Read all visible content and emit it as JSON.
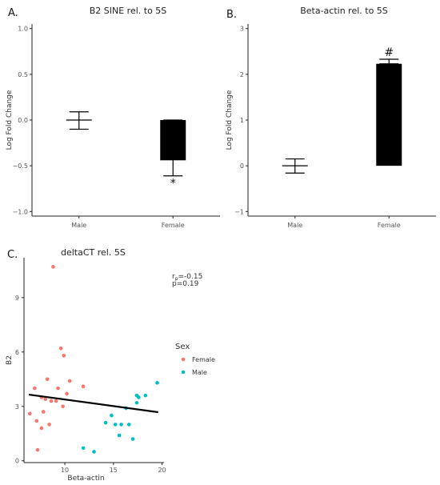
{
  "chart_data": [
    {
      "panel": "A.",
      "type": "bar",
      "title": "B2 SINE rel. to 5S",
      "xlabel": "",
      "ylabel": "Log Fold Change",
      "categories": [
        "Male",
        "Female"
      ],
      "values": [
        0.0,
        -0.44
      ],
      "errors": [
        [
          -0.1,
          0.09
        ],
        [
          -0.61,
          0.0
        ]
      ],
      "annotations": [
        "",
        "*"
      ],
      "ylim": [
        -1.05,
        1.05
      ],
      "yticks": [
        -1.0,
        -0.5,
        0.0,
        0.5,
        1.0
      ],
      "ytick_labels": [
        "−1.0",
        "−0.5",
        "0.0",
        "0.5",
        "1.0"
      ],
      "bar_color": "#000000",
      "grid": false
    },
    {
      "panel": "B.",
      "type": "bar",
      "title": "Beta-actin rel. to 5S",
      "xlabel": "",
      "ylabel": "Log Fold Change",
      "categories": [
        "Male",
        "Female"
      ],
      "values": [
        0.0,
        2.23
      ],
      "errors": [
        [
          -0.16,
          0.15
        ],
        [
          2.23,
          2.33
        ]
      ],
      "annotations": [
        "",
        "#"
      ],
      "ylim": [
        -1.1,
        3.1
      ],
      "yticks": [
        -1,
        0,
        1,
        2,
        3
      ],
      "ytick_labels": [
        "−1",
        "0",
        "1",
        "2",
        "3"
      ],
      "bar_color": "#000000",
      "grid": false
    },
    {
      "panel": "C.",
      "type": "scatter",
      "title": "deltaCT rel. 5S",
      "xlabel": "Beta-actin",
      "ylabel": "B2",
      "xlim": [
        5.8,
        20.2
      ],
      "ylim": [
        -0.1,
        11.2
      ],
      "xticks": [
        10,
        15,
        20
      ],
      "xtick_labels": [
        "10",
        "15",
        "20"
      ],
      "yticks": [
        0,
        3,
        6,
        9
      ],
      "ytick_labels": [
        "0",
        "3",
        "6",
        "9"
      ],
      "stat_label": "p=0.19",
      "stat_r_base": "r",
      "stat_r_sub": "p",
      "stat_r_value": "=-0.15",
      "legend": {
        "title": "Sex",
        "position": "right",
        "entries": [
          {
            "label": "Female",
            "color": "#f8766d"
          },
          {
            "label": "Male",
            "color": "#00bfc4"
          }
        ]
      },
      "series": [
        {
          "name": "Female",
          "color": "#f8766d",
          "points": [
            [
              8.8,
              10.7
            ],
            [
              9.6,
              6.2
            ],
            [
              9.9,
              5.8
            ],
            [
              6.9,
              4.0
            ],
            [
              8.2,
              4.5
            ],
            [
              9.3,
              4.0
            ],
            [
              10.5,
              4.4
            ],
            [
              11.9,
              4.1
            ],
            [
              8.0,
              3.4
            ],
            [
              8.6,
              3.3
            ],
            [
              7.6,
              3.5
            ],
            [
              9.1,
              3.3
            ],
            [
              10.2,
              3.7
            ],
            [
              9.8,
              3.0
            ],
            [
              6.4,
              2.6
            ],
            [
              7.8,
              2.7
            ],
            [
              7.1,
              2.2
            ],
            [
              8.4,
              2.0
            ],
            [
              7.6,
              1.8
            ],
            [
              7.2,
              0.6
            ]
          ]
        },
        {
          "name": "Male",
          "color": "#00bfc4",
          "points": [
            [
              19.5,
              4.3
            ],
            [
              17.4,
              3.6
            ],
            [
              17.6,
              3.5
            ],
            [
              18.3,
              3.6
            ],
            [
              17.4,
              3.2
            ],
            [
              16.3,
              2.9
            ],
            [
              14.8,
              2.5
            ],
            [
              15.2,
              2.0
            ],
            [
              15.8,
              2.0
            ],
            [
              14.2,
              2.1
            ],
            [
              16.6,
              2.0
            ],
            [
              15.6,
              1.4
            ],
            [
              17.0,
              1.2
            ],
            [
              11.9,
              0.7
            ],
            [
              13.0,
              0.5
            ]
          ]
        }
      ],
      "trend_line": {
        "x": [
          6.3,
          19.6
        ],
        "y": [
          3.65,
          2.68
        ],
        "color": "#000000"
      }
    }
  ]
}
